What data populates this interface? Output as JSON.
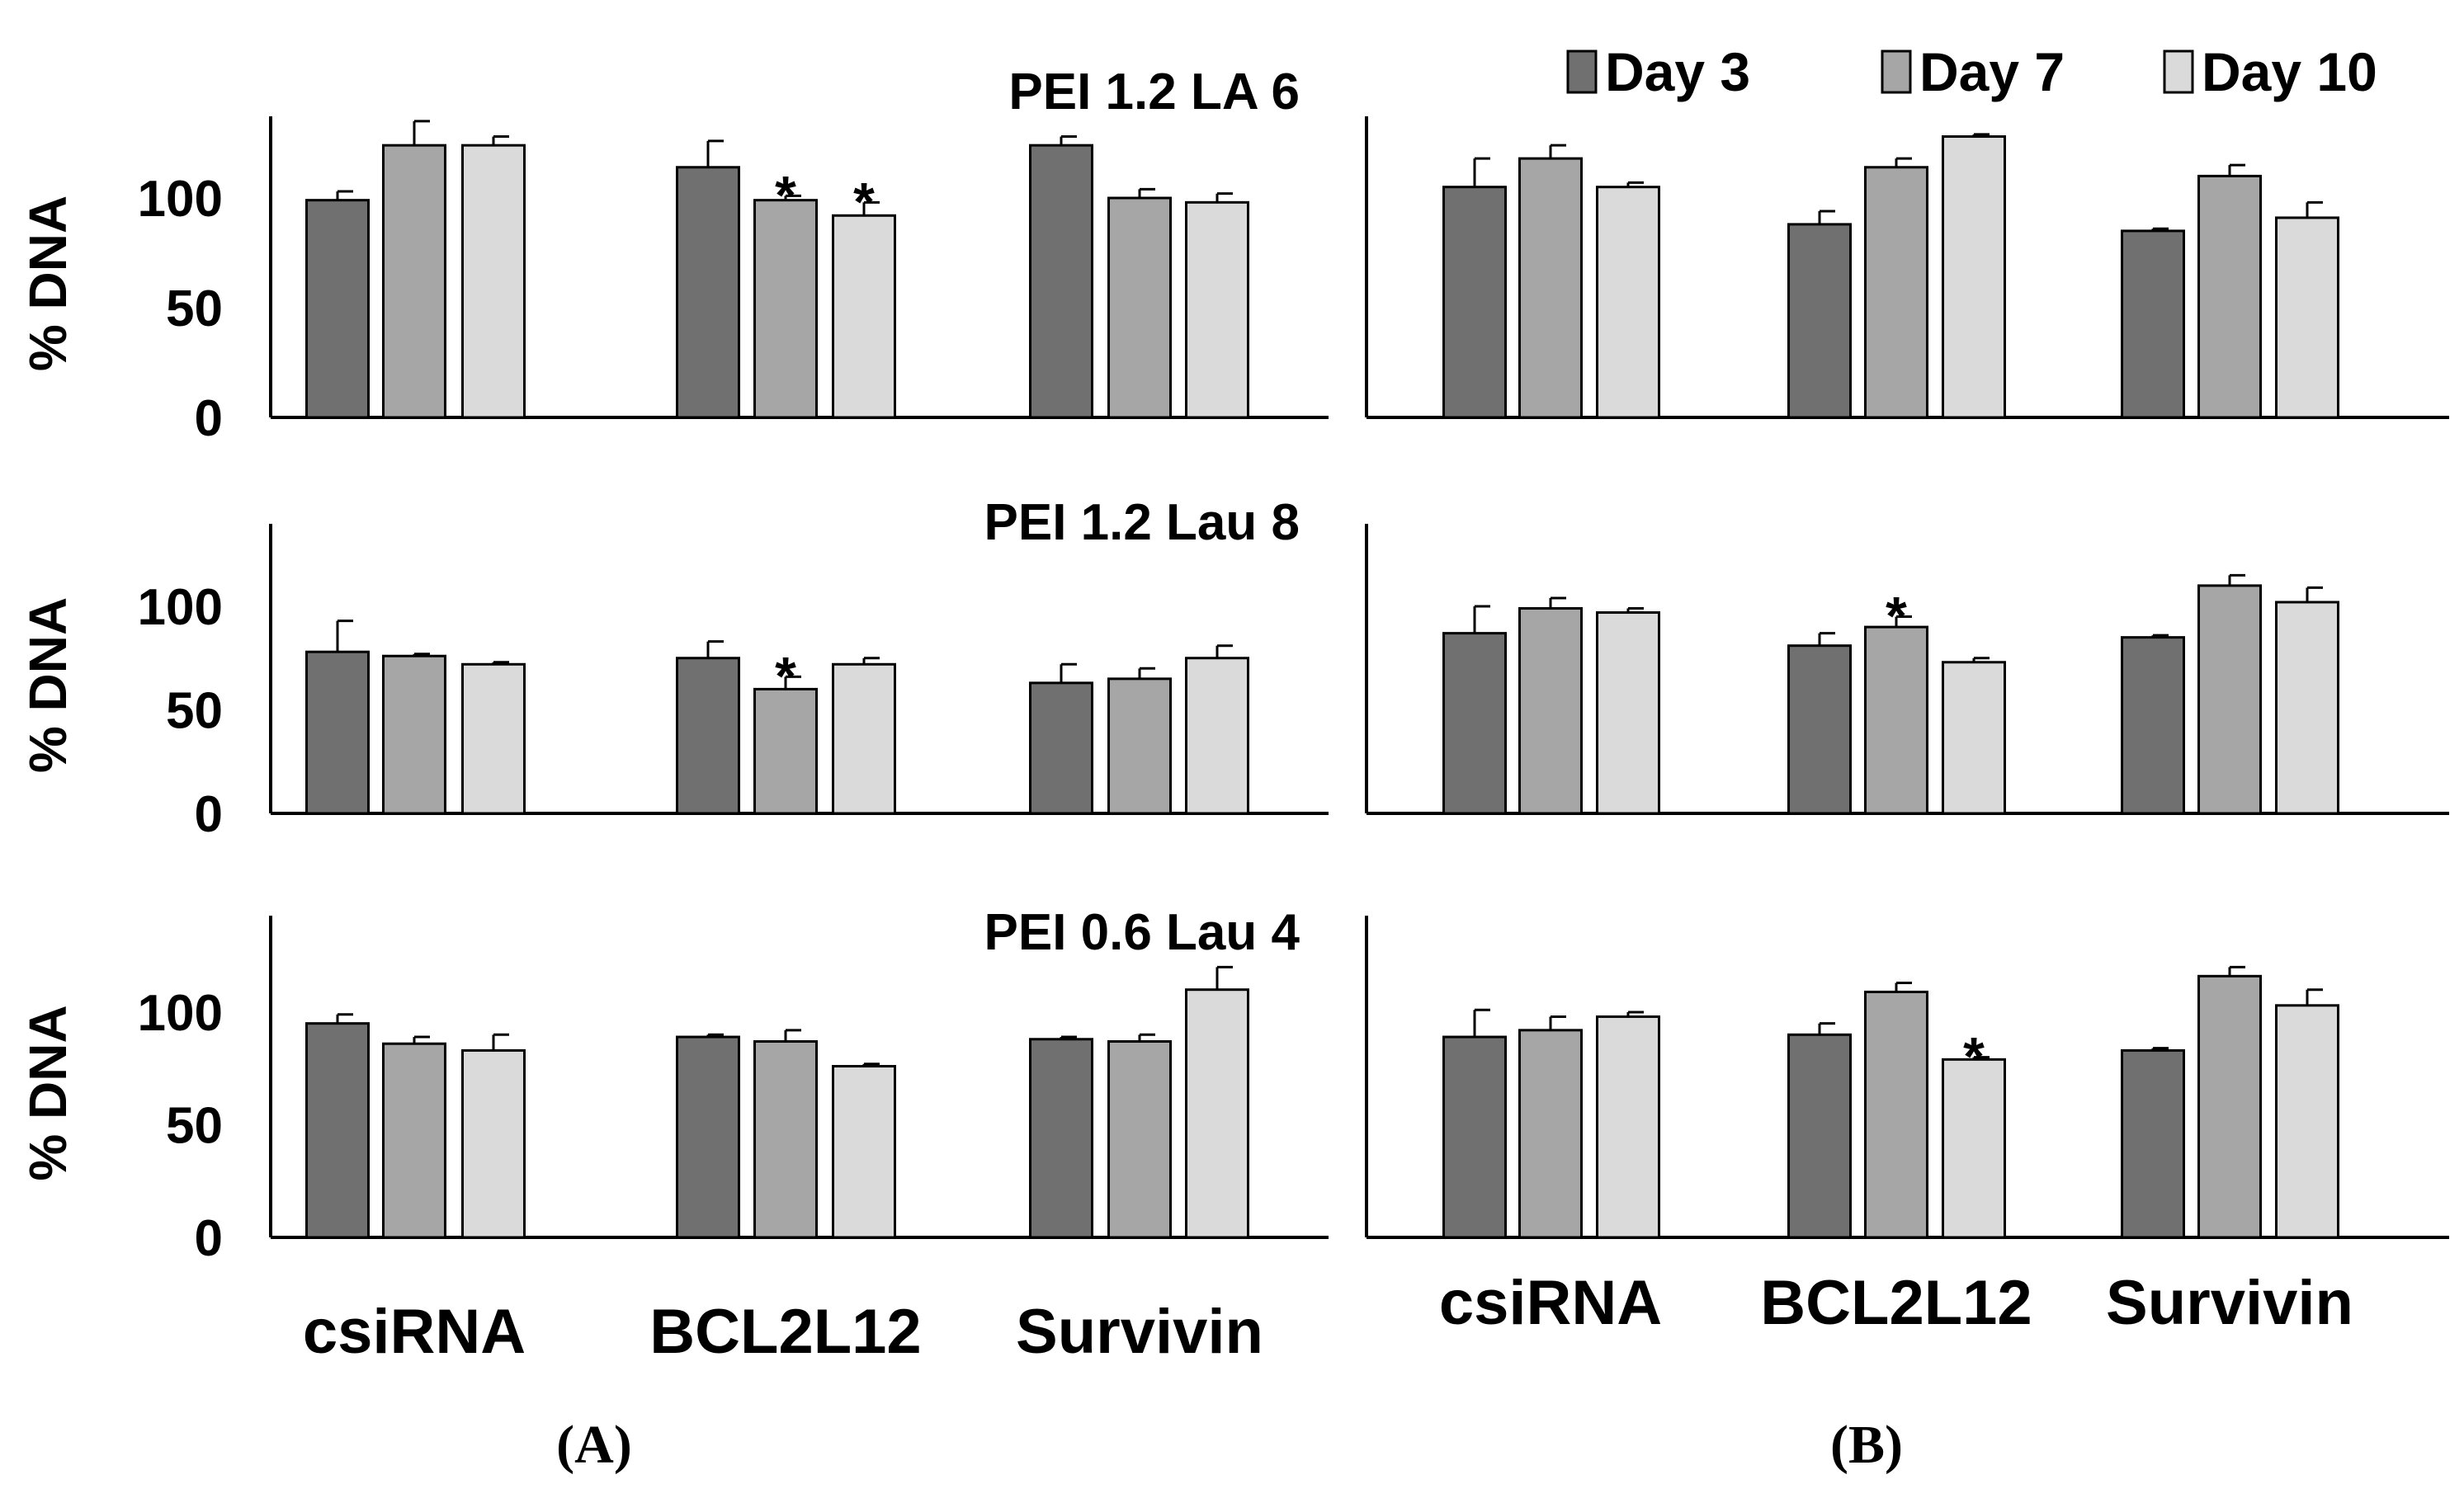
{
  "legend": [
    {
      "label": "Day 3",
      "color": "#707070"
    },
    {
      "label": "Day 7",
      "color": "#a6a6a6"
    },
    {
      "label": "Day 10",
      "color": "#dadada"
    }
  ],
  "panel_labels": {
    "A": "A",
    "B": "B"
  },
  "chart_data": [
    {
      "type": "bar",
      "title": "PEI 1.2 LA 6",
      "panel": "A",
      "row": 1,
      "ylabel": "% DNA",
      "yticks": [
        0,
        50,
        100
      ],
      "ylim": [
        0,
        140
      ],
      "categories": [
        "csiRNA",
        "BCL2L12",
        "Survivin"
      ],
      "show_xlabels": false,
      "series": [
        {
          "name": "Day 3",
          "values": [
            99,
            114,
            124
          ],
          "errors": [
            4,
            12,
            4
          ]
        },
        {
          "name": "Day 7",
          "values": [
            124,
            99,
            100
          ],
          "errors": [
            11,
            2,
            4
          ]
        },
        {
          "name": "Day 10",
          "values": [
            124,
            92,
            98
          ],
          "errors": [
            4,
            6,
            4
          ]
        }
      ],
      "annotations": [
        {
          "category": "BCL2L12",
          "series": "Day 7",
          "text": "*"
        },
        {
          "category": "BCL2L12",
          "series": "Day 10",
          "text": "*"
        }
      ]
    },
    {
      "type": "bar",
      "title": "PEI 1.2 Lau 8",
      "panel": "A",
      "row": 2,
      "ylabel": "% DNA",
      "yticks": [
        0,
        50,
        100
      ],
      "ylim": [
        0,
        140
      ],
      "categories": [
        "csiRNA",
        "BCL2L12",
        "Survivin"
      ],
      "show_xlabels": false,
      "series": [
        {
          "name": "Day 3",
          "values": [
            78,
            75,
            63
          ],
          "errors": [
            15,
            8,
            9
          ]
        },
        {
          "name": "Day 7",
          "values": [
            76,
            60,
            65
          ],
          "errors": [
            1,
            6,
            5
          ]
        },
        {
          "name": "Day 10",
          "values": [
            72,
            72,
            75
          ],
          "errors": [
            1,
            3,
            6
          ]
        }
      ],
      "annotations": [
        {
          "category": "BCL2L12",
          "series": "Day 7",
          "text": "*"
        }
      ]
    },
    {
      "type": "bar",
      "title": "PEI 0.6 Lau 4",
      "panel": "A",
      "row": 3,
      "ylabel": "% DNA",
      "yticks": [
        0,
        50,
        100
      ],
      "ylim": [
        0,
        140
      ],
      "categories": [
        "csiRNA",
        "BCL2L12",
        "Survivin"
      ],
      "show_xlabels": true,
      "series": [
        {
          "name": "Day 3",
          "values": [
            95,
            89,
            88
          ],
          "errors": [
            4,
            1,
            1
          ]
        },
        {
          "name": "Day 7",
          "values": [
            86,
            87,
            87
          ],
          "errors": [
            3,
            5,
            3
          ]
        },
        {
          "name": "Day 10",
          "values": [
            83,
            76,
            110
          ],
          "errors": [
            7,
            1,
            10
          ]
        }
      ],
      "annotations": []
    },
    {
      "type": "bar",
      "title": "",
      "panel": "B",
      "row": 1,
      "ylabel": "",
      "yticks": [],
      "ylim": [
        0,
        140
      ],
      "categories": [
        "csiRNA",
        "BCL2L12",
        "Survivin"
      ],
      "show_xlabels": false,
      "series": [
        {
          "name": "Day 3",
          "values": [
            105,
            88,
            85
          ],
          "errors": [
            13,
            6,
            1
          ]
        },
        {
          "name": "Day 7",
          "values": [
            118,
            114,
            110
          ],
          "errors": [
            6,
            4,
            5
          ]
        },
        {
          "name": "Day 10",
          "values": [
            105,
            128,
            91
          ],
          "errors": [
            2,
            1,
            7
          ]
        }
      ],
      "annotations": []
    },
    {
      "type": "bar",
      "title": "",
      "panel": "B",
      "row": 2,
      "ylabel": "",
      "yticks": [],
      "ylim": [
        0,
        140
      ],
      "categories": [
        "csiRNA",
        "BCL2L12",
        "Survivin"
      ],
      "show_xlabels": false,
      "series": [
        {
          "name": "Day 3",
          "values": [
            87,
            81,
            85
          ],
          "errors": [
            13,
            6,
            1
          ]
        },
        {
          "name": "Day 7",
          "values": [
            99,
            90,
            110
          ],
          "errors": [
            5,
            5,
            5
          ]
        },
        {
          "name": "Day 10",
          "values": [
            97,
            73,
            102
          ],
          "errors": [
            2,
            2,
            7
          ]
        }
      ],
      "annotations": [
        {
          "category": "BCL2L12",
          "series": "Day 7",
          "text": "*"
        }
      ]
    },
    {
      "type": "bar",
      "title": "",
      "panel": "B",
      "row": 3,
      "ylabel": "",
      "yticks": [],
      "ylim": [
        0,
        140
      ],
      "categories": [
        "csiRNA",
        "BCL2L12",
        "Survivin"
      ],
      "show_xlabels": true,
      "series": [
        {
          "name": "Day 3",
          "values": [
            89,
            90,
            83
          ],
          "errors": [
            12,
            5,
            1
          ]
        },
        {
          "name": "Day 7",
          "values": [
            92,
            109,
            116
          ],
          "errors": [
            6,
            4,
            4
          ]
        },
        {
          "name": "Day 10",
          "values": [
            98,
            79,
            103
          ],
          "errors": [
            2,
            1,
            7
          ]
        }
      ],
      "annotations": [
        {
          "category": "BCL2L12",
          "series": "Day 10",
          "text": "*"
        }
      ]
    }
  ]
}
